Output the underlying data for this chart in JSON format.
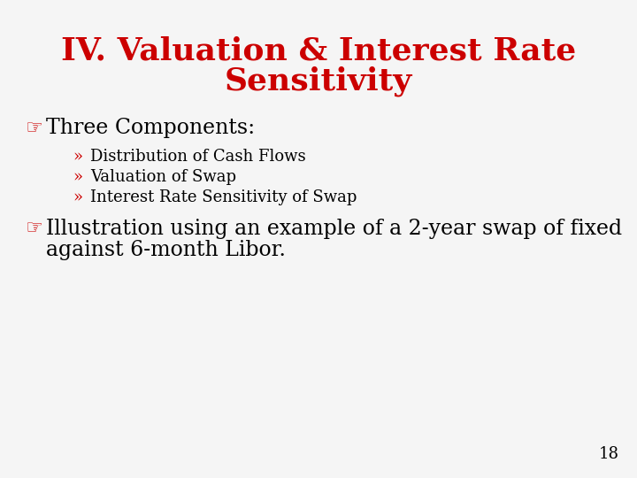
{
  "title_line1": "IV. Valuation & Interest Rate",
  "title_line2": "Sensitivity",
  "title_color": "#cc0000",
  "title_fontsize": 26,
  "title_fontfamily": "serif",
  "title_fontstyle": "normal",
  "title_fontweight": "bold",
  "background_color": "#f5f5f5",
  "bullet_color": "#cc0000",
  "text_color": "#000000",
  "sub_bullet_color": "#cc0000",
  "bullet1_text": "Three Components:",
  "bullet1_fontsize": 17,
  "sub_bullets": [
    "Distribution of Cash Flows",
    "Valuation of Swap",
    "Interest Rate Sensitivity of Swap"
  ],
  "sub_bullet_fontsize": 13,
  "bullet2_line1": "Illustration using an example of a 2-year swap of fixed",
  "bullet2_line2": "against 6-month Libor.",
  "bullet2_fontsize": 17,
  "page_number": "18",
  "page_number_fontsize": 13
}
